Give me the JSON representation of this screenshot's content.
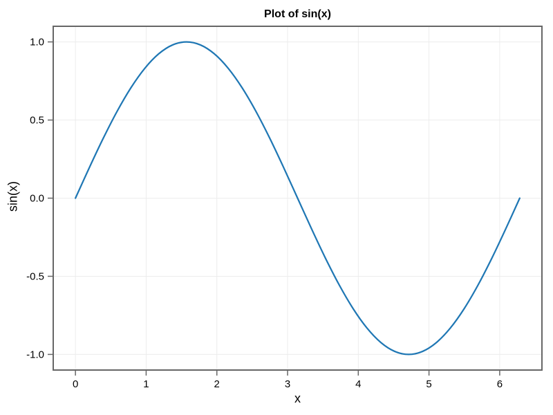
{
  "chart_data": {
    "type": "line",
    "title": "Plot of sin(x)",
    "xlabel": "x",
    "ylabel": "sin(x)",
    "xlim": [
      -0.3142,
      6.5974
    ],
    "ylim": [
      -1.1,
      1.1
    ],
    "grid": true,
    "legend_position": "none",
    "xticks": {
      "values": [
        0,
        1,
        2,
        3,
        4,
        5,
        6
      ],
      "labels": [
        "0",
        "1",
        "2",
        "3",
        "4",
        "5",
        "6"
      ]
    },
    "yticks": {
      "values": [
        -1.0,
        -0.5,
        0.0,
        0.5,
        1.0
      ],
      "labels": [
        "-1.0",
        "-0.5",
        "0.0",
        "0.5",
        "1.0"
      ]
    },
    "series": [
      {
        "name": "sin(x)",
        "color": "#1f77b4",
        "line_width": 2.25,
        "x": [
          0,
          0.1963,
          0.3927,
          0.589,
          0.7854,
          0.9817,
          1.1781,
          1.3744,
          1.5708,
          1.7671,
          1.9635,
          2.1598,
          2.3562,
          2.5525,
          2.7489,
          2.9452,
          3.1416,
          3.3379,
          3.5343,
          3.7306,
          3.927,
          4.1233,
          4.3197,
          4.516,
          4.7124,
          4.9087,
          5.1051,
          5.3014,
          5.4978,
          5.6941,
          5.8905,
          6.0868,
          6.2832
        ],
        "y": [
          0,
          0.1951,
          0.3827,
          0.5556,
          0.7071,
          0.8315,
          0.9239,
          0.9808,
          1,
          0.9808,
          0.9239,
          0.8315,
          0.7071,
          0.5556,
          0.3827,
          0.1951,
          0,
          -0.1951,
          -0.3827,
          -0.5556,
          -0.7071,
          -0.8315,
          -0.9239,
          -0.9808,
          -1,
          -0.9808,
          -0.9239,
          -0.8315,
          -0.7071,
          -0.5556,
          -0.3827,
          -0.1951,
          0
        ]
      }
    ],
    "style": {
      "background_color": "#ffffff",
      "frame_color": "#666666",
      "grid_color": "#ececec",
      "tick_color": "#666666",
      "text_color": "#000000"
    }
  }
}
